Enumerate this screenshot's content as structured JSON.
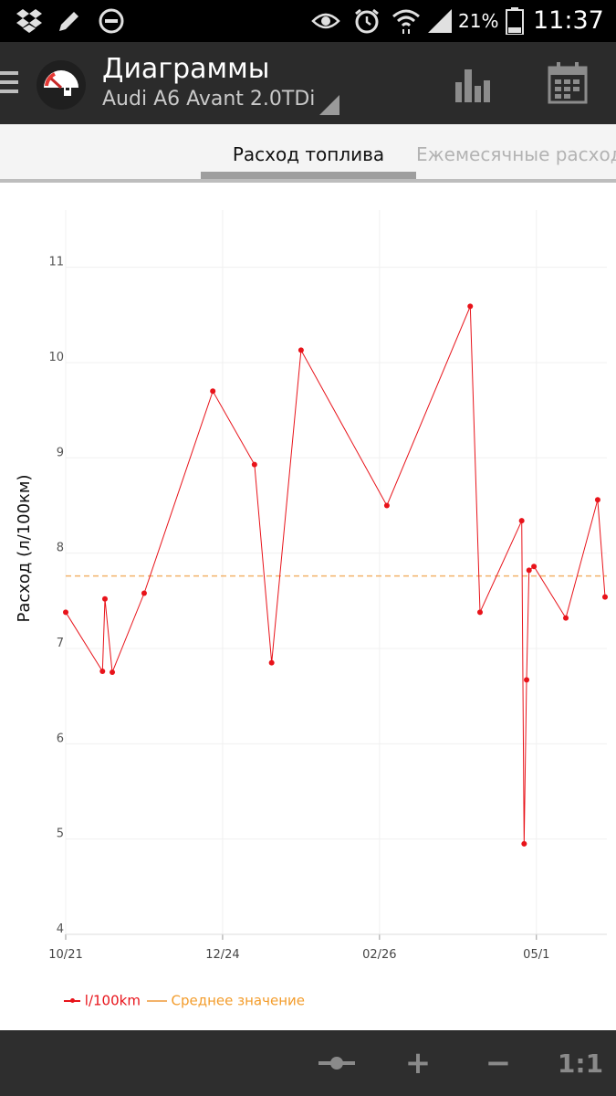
{
  "status_bar": {
    "battery_percent": "21%",
    "time": "11:37",
    "icons": [
      "dropbox-icon",
      "pencil-icon",
      "do-not-disturb-icon",
      "eye-icon",
      "alarm-icon",
      "wifi-icon",
      "signal-icon",
      "battery-icon"
    ]
  },
  "action_bar": {
    "title": "Диаграммы",
    "subtitle": "Audi A6 Avant 2.0TDi",
    "actions": [
      "bar-chart-icon",
      "calendar-icon"
    ]
  },
  "tabs": [
    {
      "label": "Расход топлива",
      "active": true
    },
    {
      "label": "Ежемесячные расходы",
      "active": false
    }
  ],
  "chart_data": {
    "type": "line",
    "xlabel": "",
    "ylabel": "Расход (л/100км)",
    "x_tick_labels": [
      "10/21",
      "12/24",
      "02/26",
      "05/1"
    ],
    "y_tick_labels": [
      "4",
      "5",
      "6",
      "7",
      "8",
      "9",
      "10",
      "11"
    ],
    "ylim": [
      4,
      11.6
    ],
    "grid": true,
    "legend_position": "bottom-left",
    "series": [
      {
        "name": "l/100km",
        "color": "#e8131a",
        "x": [
          "2013-10-21",
          "2013-11-05",
          "2013-11-06",
          "2013-11-09",
          "2013-11-22",
          "2013-12-20",
          "2014-01-06",
          "2014-01-13",
          "2014-01-25",
          "2014-03-01",
          "2014-04-04",
          "2014-04-08",
          "2014-04-25",
          "2014-04-26",
          "2014-04-27",
          "2014-04-28",
          "2014-04-30",
          "2014-05-13",
          "2014-05-26",
          "2014-05-29"
        ],
        "values": [
          7.38,
          6.76,
          7.52,
          6.75,
          7.58,
          9.7,
          8.93,
          6.85,
          10.13,
          8.5,
          10.59,
          7.38,
          8.34,
          4.95,
          6.67,
          7.82,
          7.86,
          7.32,
          8.56,
          7.54
        ]
      },
      {
        "name": "Среднее значение",
        "color": "#f3b26a",
        "style": "dashed",
        "values": [
          7.76
        ]
      }
    ]
  },
  "bottom_bar": {
    "buttons": [
      {
        "name": "slider-icon",
        "label": ""
      },
      {
        "name": "zoom-in-icon",
        "label": "+"
      },
      {
        "name": "zoom-out-icon",
        "label": "−"
      },
      {
        "name": "reset-zoom-button",
        "label": "1:1"
      }
    ]
  }
}
